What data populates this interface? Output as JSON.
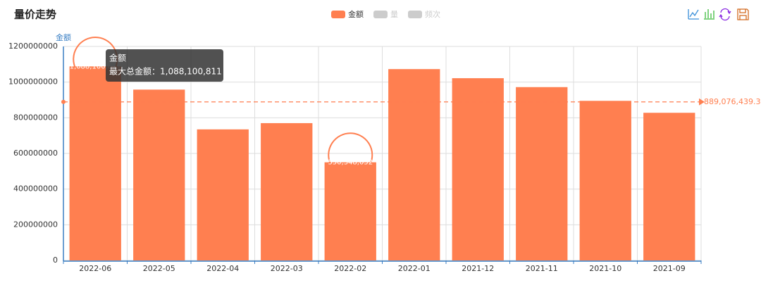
{
  "chart_data": {
    "type": "bar",
    "title": "量价走势",
    "legend": [
      {
        "name": "金额",
        "color": "#ff7f50",
        "active": true
      },
      {
        "name": "量",
        "color": "#cccccc",
        "active": false
      },
      {
        "name": "频次",
        "color": "#cccccc",
        "active": false
      }
    ],
    "y_axis_name": "金额",
    "categories": [
      "2022-06",
      "2022-05",
      "2022-04",
      "2022-03",
      "2022-02",
      "2022-01",
      "2021-12",
      "2021-11",
      "2021-10",
      "2021-09"
    ],
    "series": [
      {
        "name": "金额",
        "color": "#ff7f50",
        "values": [
          1088100811,
          958000000,
          735000000,
          770000000,
          550348052,
          1073000000,
          1022000000,
          972000000,
          895000000,
          828000000
        ]
      }
    ],
    "mark_points": [
      {
        "index": 0,
        "value": 1088100811,
        "label": "1,088,100,811"
      },
      {
        "index": 4,
        "value": 550348052,
        "label": "550,348,052"
      }
    ],
    "mark_line": {
      "value": 889076439.3,
      "label": "889,076,439.3"
    },
    "tooltip": {
      "title": "金额",
      "text": "最大总金额：1,088,100,811"
    },
    "ylim": [
      0,
      1200000000
    ],
    "yticks": [
      0,
      200000000,
      400000000,
      600000000,
      800000000,
      1000000000,
      1200000000
    ],
    "grid": true
  }
}
